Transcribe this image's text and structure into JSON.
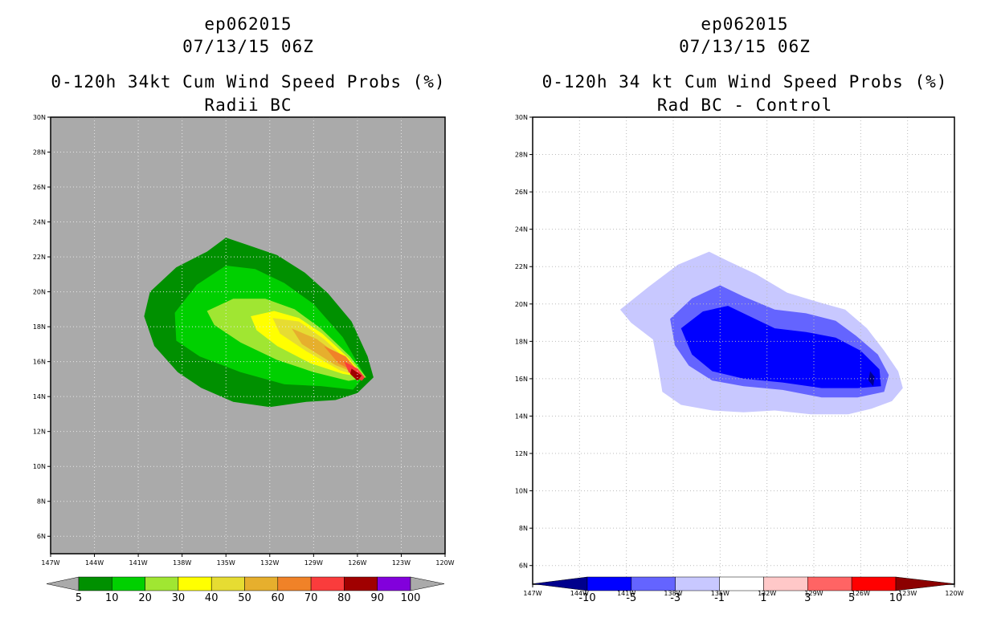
{
  "charts": [
    {
      "storm_id": "ep062015",
      "datetime": "07/13/15 06Z",
      "title": "0-120h 34kt Cum Wind Speed Probs (%)",
      "subtitle": "Radii BC",
      "background_color": "#aaaaaa"
    },
    {
      "storm_id": "ep062015",
      "datetime": "07/13/15 06Z",
      "title": "0-120h 34 kt Cum Wind Speed Probs (%)",
      "subtitle": "Rad BC - Control",
      "background_color": "#ffffff"
    }
  ],
  "chart_data": [
    {
      "type": "heatmap",
      "title": "0-120h 34kt Cum Wind Speed Probs (%)",
      "subtitle": "Radii BC",
      "x_ticks": [
        "147W",
        "144W",
        "141W",
        "138W",
        "135W",
        "132W",
        "129W",
        "126W",
        "123W",
        "120W"
      ],
      "y_ticks": [
        "6N",
        "8N",
        "10N",
        "12N",
        "14N",
        "16N",
        "18N",
        "20N",
        "22N",
        "24N",
        "26N",
        "28N",
        "30N"
      ],
      "xlim_lon": [
        -147,
        -120
      ],
      "ylim_lat": [
        5,
        30
      ],
      "grid": true,
      "legend": {
        "labels": [
          "5",
          "10",
          "20",
          "30",
          "40",
          "50",
          "60",
          "70",
          "80",
          "90",
          "100"
        ],
        "colors": [
          "#009000",
          "#00d000",
          "#a0e632",
          "#ffff00",
          "#e6dc32",
          "#e6af2d",
          "#f08228",
          "#fa3c3c",
          "#a00000",
          "#8200dc"
        ],
        "left_arrow_color": "#aaaaaa",
        "right_arrow_color": "#aaaaaa"
      },
      "contours": [
        {
          "level": 5,
          "color": "#009000",
          "lonlat": [
            [
              -140.2,
              20
            ],
            [
              -138.4,
              21.4
            ],
            [
              -136.3,
              22.3
            ],
            [
              -135,
              23.1
            ],
            [
              -133.6,
              22.7
            ],
            [
              -131.5,
              22.1
            ],
            [
              -129.6,
              21.1
            ],
            [
              -128,
              19.9
            ],
            [
              -126.4,
              18.3
            ],
            [
              -125.3,
              16.3
            ],
            [
              -124.9,
              15.1
            ],
            [
              -126,
              14.2
            ],
            [
              -127.5,
              13.8
            ],
            [
              -129.5,
              13.7
            ],
            [
              -132,
              13.4
            ],
            [
              -134.5,
              13.7
            ],
            [
              -136.7,
              14.5
            ],
            [
              -138.3,
              15.4
            ],
            [
              -139.9,
              16.9
            ],
            [
              -140.6,
              18.6
            ]
          ]
        },
        {
          "level": 10,
          "color": "#00d000",
          "lonlat": [
            [
              -138.5,
              18.8
            ],
            [
              -137,
              20.4
            ],
            [
              -135,
              21.5
            ],
            [
              -133,
              21.3
            ],
            [
              -131,
              20.5
            ],
            [
              -129,
              19.3
            ],
            [
              -127,
              17.4
            ],
            [
              -125.5,
              15.2
            ],
            [
              -126.3,
              14.4
            ],
            [
              -128.5,
              14.6
            ],
            [
              -131,
              14.7
            ],
            [
              -134,
              15.4
            ],
            [
              -136.8,
              16.3
            ],
            [
              -138.4,
              17.2
            ]
          ]
        },
        {
          "level": 20,
          "color": "#a0e632",
          "lonlat": [
            [
              -136.3,
              18.9
            ],
            [
              -134.5,
              19.6
            ],
            [
              -132.3,
              19.6
            ],
            [
              -130.3,
              19
            ],
            [
              -128.5,
              17.9
            ],
            [
              -126.5,
              16.3
            ],
            [
              -125.4,
              15.1
            ],
            [
              -126.6,
              14.9
            ],
            [
              -129,
              15.4
            ],
            [
              -131.5,
              16.1
            ],
            [
              -134,
              17.1
            ],
            [
              -135.8,
              18.1
            ]
          ]
        },
        {
          "level": 30,
          "color": "#ffff00",
          "lonlat": [
            [
              -133.3,
              18.6
            ],
            [
              -131.7,
              18.9
            ],
            [
              -130,
              18.5
            ],
            [
              -128.4,
              17.6
            ],
            [
              -126.6,
              16.2
            ],
            [
              -125.5,
              15.1
            ],
            [
              -127,
              15.3
            ],
            [
              -129.2,
              15.9
            ],
            [
              -131.5,
              16.9
            ],
            [
              -132.9,
              17.8
            ]
          ]
        },
        {
          "level": 40,
          "color": "#e6dc32",
          "lonlat": [
            [
              -131.8,
              18.5
            ],
            [
              -130,
              18.3
            ],
            [
              -128.3,
              17.3
            ],
            [
              -126.6,
              16
            ],
            [
              -125.6,
              15.1
            ],
            [
              -127.2,
              15.5
            ],
            [
              -129.5,
              16.6
            ],
            [
              -131.3,
              17.6
            ]
          ]
        },
        {
          "level": 50,
          "color": "#e6af2d",
          "lonlat": [
            [
              -130.5,
              17.9
            ],
            [
              -128.8,
              17.3
            ],
            [
              -127.2,
              16.3
            ],
            [
              -125.7,
              15.2
            ],
            [
              -127.5,
              15.8
            ],
            [
              -129.8,
              17
            ]
          ]
        },
        {
          "level": 60,
          "color": "#f08228",
          "lonlat": [
            [
              -128.3,
              16.9
            ],
            [
              -126.8,
              16.3
            ],
            [
              -125.7,
              15.2
            ],
            [
              -127.3,
              15.9
            ]
          ]
        },
        {
          "level": 70,
          "color": "#fa3c3c",
          "lonlat": [
            [
              -126.9,
              16
            ],
            [
              -126,
              15.6
            ],
            [
              -125.5,
              15.1
            ],
            [
              -125.7,
              14.9
            ],
            [
              -126.6,
              15.4
            ]
          ]
        },
        {
          "level": 80,
          "color": "#a00000",
          "lonlat": [
            [
              -126.4,
              15.6
            ],
            [
              -125.7,
              15.2
            ],
            [
              -126,
              14.9
            ],
            [
              -126.5,
              15.3
            ]
          ]
        }
      ]
    },
    {
      "type": "heatmap",
      "title": "0-120h 34 kt Cum Wind Speed Probs (%)",
      "subtitle": "Rad BC - Control",
      "x_ticks": [
        "147W",
        "144W",
        "141W",
        "138W",
        "135W",
        "132W",
        "129W",
        "126W",
        "123W",
        "120W"
      ],
      "y_ticks": [
        "6N",
        "8N",
        "10N",
        "12N",
        "14N",
        "16N",
        "18N",
        "20N",
        "22N",
        "24N",
        "26N",
        "28N",
        "30N"
      ],
      "xlim_lon": [
        -147,
        -120
      ],
      "ylim_lat": [
        5,
        30
      ],
      "grid": true,
      "legend": {
        "labels": [
          "-10",
          "-5",
          "-3",
          "-1",
          "1",
          "3",
          "5",
          "10"
        ],
        "colors": [
          "#0000ff",
          "#6464ff",
          "#c8c8ff",
          "#ffffff",
          "#ffc8c8",
          "#ff6464",
          "#ff0000"
        ],
        "left_arrow_color": "#00008c",
        "right_arrow_color": "#8c0000"
      },
      "contours": [
        {
          "level": -1,
          "color": "#c8c8ff",
          "lonlat": [
            [
              -141.4,
              19.7
            ],
            [
              -139.6,
              20.9
            ],
            [
              -137.7,
              22.1
            ],
            [
              -135.7,
              22.8
            ],
            [
              -134.5,
              22.3
            ],
            [
              -132.7,
              21.6
            ],
            [
              -130.7,
              20.6
            ],
            [
              -128.7,
              20.1
            ],
            [
              -127,
              19.7
            ],
            [
              -125.6,
              18.7
            ],
            [
              -124.5,
              17.5
            ],
            [
              -123.6,
              16.4
            ],
            [
              -123.3,
              15.5
            ],
            [
              -124,
              14.8
            ],
            [
              -125.3,
              14.4
            ],
            [
              -126.8,
              14.1
            ],
            [
              -129.2,
              14.1
            ],
            [
              -131.5,
              14.3
            ],
            [
              -133.5,
              14.2
            ],
            [
              -135.5,
              14.3
            ],
            [
              -137.5,
              14.6
            ],
            [
              -138.7,
              15.3
            ],
            [
              -139,
              16.8
            ],
            [
              -139.3,
              18.1
            ],
            [
              -140.7,
              19
            ]
          ]
        },
        {
          "level": -3,
          "color": "#6464ff",
          "lonlat": [
            [
              -138.2,
              19.2
            ],
            [
              -136.8,
              20.3
            ],
            [
              -135,
              21
            ],
            [
              -133.5,
              20.4
            ],
            [
              -131.5,
              19.7
            ],
            [
              -129.5,
              19.5
            ],
            [
              -127.6,
              19.1
            ],
            [
              -126.3,
              18.3
            ],
            [
              -124.9,
              17.3
            ],
            [
              -124.2,
              16.2
            ],
            [
              -124.5,
              15.3
            ],
            [
              -126.2,
              15
            ],
            [
              -128.5,
              15
            ],
            [
              -131,
              15.4
            ],
            [
              -133.5,
              15.6
            ],
            [
              -135.5,
              15.9
            ],
            [
              -137,
              16.7
            ],
            [
              -137.9,
              17.8
            ]
          ]
        },
        {
          "level": -5,
          "color": "#0000ff",
          "lonlat": [
            [
              -137.5,
              18.7
            ],
            [
              -136.1,
              19.6
            ],
            [
              -134.5,
              19.9
            ],
            [
              -133,
              19.3
            ],
            [
              -131.5,
              18.7
            ],
            [
              -129.5,
              18.5
            ],
            [
              -127.6,
              18.2
            ],
            [
              -126,
              17.5
            ],
            [
              -124.8,
              16.5
            ],
            [
              -124.7,
              15.6
            ],
            [
              -126.2,
              15.5
            ],
            [
              -128.5,
              15.5
            ],
            [
              -131,
              15.8
            ],
            [
              -133.5,
              16
            ],
            [
              -135.5,
              16.4
            ],
            [
              -136.8,
              17.3
            ]
          ]
        },
        {
          "level": -10,
          "color": "#00008c",
          "lonlat": [
            [
              -125.4,
              16.4
            ],
            [
              -125.1,
              16.1
            ],
            [
              -125.2,
              15.6
            ],
            [
              -125.5,
              15.9
            ]
          ]
        }
      ]
    }
  ]
}
